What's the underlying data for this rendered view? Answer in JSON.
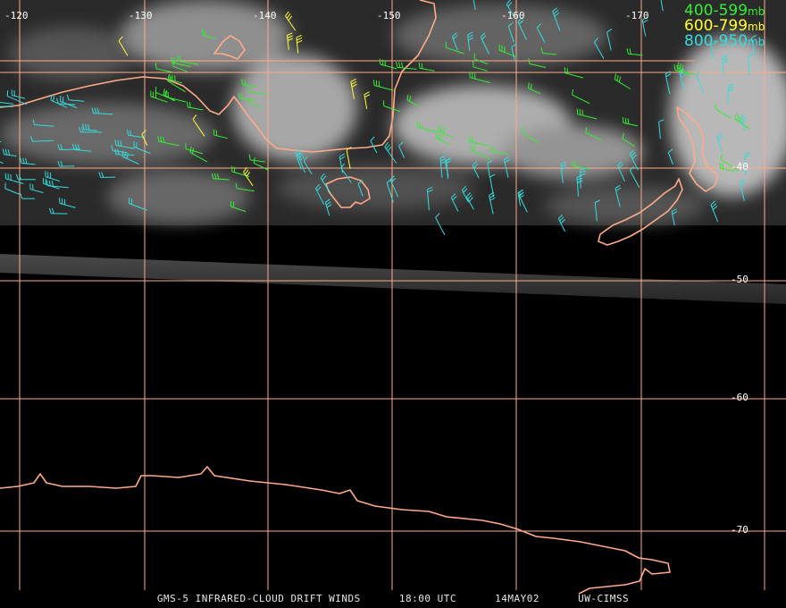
{
  "map": {
    "longitude_labels": [
      "-120",
      "-130",
      "-140",
      "-150",
      "-160",
      "-170"
    ],
    "latitude_labels": [
      "-40",
      "-50",
      "-60",
      "-70"
    ]
  },
  "legend": [
    {
      "range": "400-599",
      "unit": "mb",
      "color": "#33ee33"
    },
    {
      "range": "600-799",
      "unit": "mb",
      "color": "#ffff33"
    },
    {
      "range": "800-950",
      "unit": "mb",
      "color": "#33dddd"
    }
  ],
  "colors": {
    "coast": "#ffaa88",
    "grid": "#ffaa88"
  },
  "footer": {
    "product": "GMS-5 INFRARED-CLOUD DRIFT WINDS",
    "time": "18:00 UTC",
    "date": "14MAY02",
    "source": "UW-CIMSS"
  }
}
